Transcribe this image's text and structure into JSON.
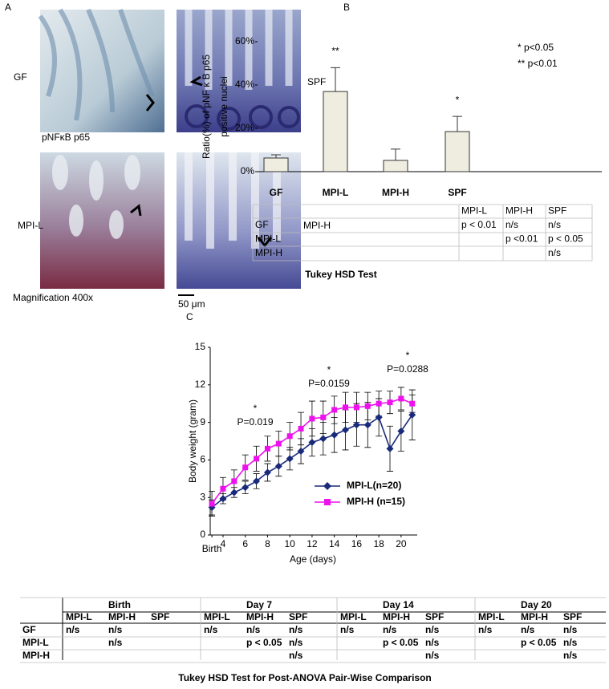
{
  "panel_a": {
    "letter": "A",
    "labels": {
      "gf": "GF",
      "spf": "SPF",
      "stain": "pNFκB  p65",
      "mpi_l": "MPI-L",
      "mpi_h": "MPI-H",
      "magnification": "Magnification 400x",
      "scale": "50 μm"
    }
  },
  "panel_b_letter": "B",
  "panel_c_letter": "C",
  "chart_data": [
    {
      "type": "bar",
      "ylabel": [
        "Ratio(%) of pNF κ B  p65",
        "positive nuclei"
      ],
      "categories": [
        "GF",
        "MPI-L",
        "MPI-H",
        "SPF"
      ],
      "values": [
        6.3,
        37,
        5.2,
        18.5
      ],
      "errors": [
        1.5,
        11,
        5.2,
        7
      ],
      "significance": [
        null,
        "**",
        null,
        "*"
      ],
      "notes": [
        "* p<0.05",
        "** p<0.01"
      ],
      "color": "#efede0",
      "ylim": [
        0,
        60
      ],
      "yticks": [
        {
          "value": 0,
          "label": "0%"
        },
        {
          "value": 20,
          "label": "20%"
        },
        {
          "value": 40,
          "label": "40%"
        },
        {
          "value": 60,
          "label": "60%"
        }
      ]
    },
    {
      "type": "line",
      "xlabel": "Age (days)",
      "ylabel": "Body weight (gram)",
      "x": [
        3,
        4,
        5,
        6,
        7,
        8,
        9,
        10,
        11,
        12,
        13,
        14,
        15,
        16,
        17,
        18,
        19,
        20,
        21
      ],
      "series": [
        {
          "name": "MPI-L(n=20)",
          "color": "#1a2a7a",
          "marker": "diamond",
          "values": [
            2.2,
            2.9,
            3.4,
            3.8,
            4.3,
            5.0,
            5.5,
            6.1,
            6.7,
            7.4,
            7.7,
            8.0,
            8.4,
            8.8,
            8.8,
            9.4,
            6.9,
            8.3,
            9.6
          ],
          "errors": [
            0.6,
            0.4,
            0.4,
            0.5,
            0.6,
            0.7,
            0.8,
            0.9,
            1.0,
            1.1,
            1.3,
            1.4,
            1.6,
            1.7,
            1.8,
            1.5,
            1.8,
            1.6,
            2.0
          ]
        },
        {
          "name": "MPI-H (n=15)",
          "color": "#ee11ee",
          "marker": "square",
          "values": [
            2.5,
            3.7,
            4.3,
            5.4,
            6.1,
            6.9,
            7.3,
            7.9,
            8.5,
            9.3,
            9.4,
            10.0,
            10.2,
            10.2,
            10.3,
            10.5,
            10.6,
            10.9,
            10.5
          ],
          "errors": [
            1.0,
            0.9,
            0.9,
            1.0,
            1.0,
            1.0,
            1.0,
            1.1,
            1.3,
            1.4,
            1.3,
            1.1,
            1.2,
            1.2,
            1.1,
            1.0,
            0.9,
            0.9,
            0.7
          ]
        }
      ],
      "annotations": [
        {
          "star": "*",
          "text": "P=0.019"
        },
        {
          "star": "*",
          "text": "P=0.0159"
        },
        {
          "star": "*",
          "text": "P=0.0288"
        }
      ],
      "xlim": [
        2.85,
        21.45
      ],
      "xticks": [
        {
          "value": 3,
          "label": "Birth"
        },
        4,
        6,
        8,
        10,
        12,
        14,
        16,
        18,
        20
      ],
      "ylim": [
        0,
        15
      ],
      "yticks": [
        0,
        3,
        6,
        9,
        12,
        15
      ]
    }
  ],
  "table_b": {
    "rows": [
      [
        null,
        "MPI-L",
        "MPI-H",
        "SPF"
      ],
      [
        "GF",
        "p < 0.01",
        "n/s",
        "n/s"
      ],
      [
        "MPI-L",
        null,
        "p <0.01",
        "p < 0.05"
      ],
      [
        "MPI-H",
        null,
        null,
        "n/s"
      ]
    ],
    "caption": "Tukey HSD Test"
  },
  "table_c": {
    "groups": [
      "Birth",
      "Day 7",
      "Day 14",
      "Day 20"
    ],
    "subheaders": [
      "MPI-L",
      "MPI-H",
      "SPF",
      "MPI-L",
      "MPI-H",
      "SPF",
      "MPI-L",
      "MPI-H",
      "SPF",
      "MPI-L",
      "MPI-H",
      "SPF"
    ],
    "rows": [
      {
        "label": "GF",
        "cells": [
          "n/s",
          "n/s",
          null,
          "n/s",
          "n/s",
          "n/s",
          "n/s",
          "n/s",
          "n/s",
          "n/s",
          "n/s",
          "n/s"
        ]
      },
      {
        "label": "MPI-L",
        "cells": [
          null,
          "n/s",
          null,
          null,
          "p < 0.05",
          "n/s",
          null,
          "p < 0.05",
          "n/s",
          null,
          "p < 0.05",
          "n/s"
        ]
      },
      {
        "label": "MPI-H",
        "cells": [
          null,
          null,
          null,
          null,
          null,
          "n/s",
          null,
          null,
          "n/s",
          null,
          null,
          "n/s"
        ]
      }
    ],
    "caption": "Tukey HSD Test for Post-ANOVA Pair-Wise Comparison"
  }
}
